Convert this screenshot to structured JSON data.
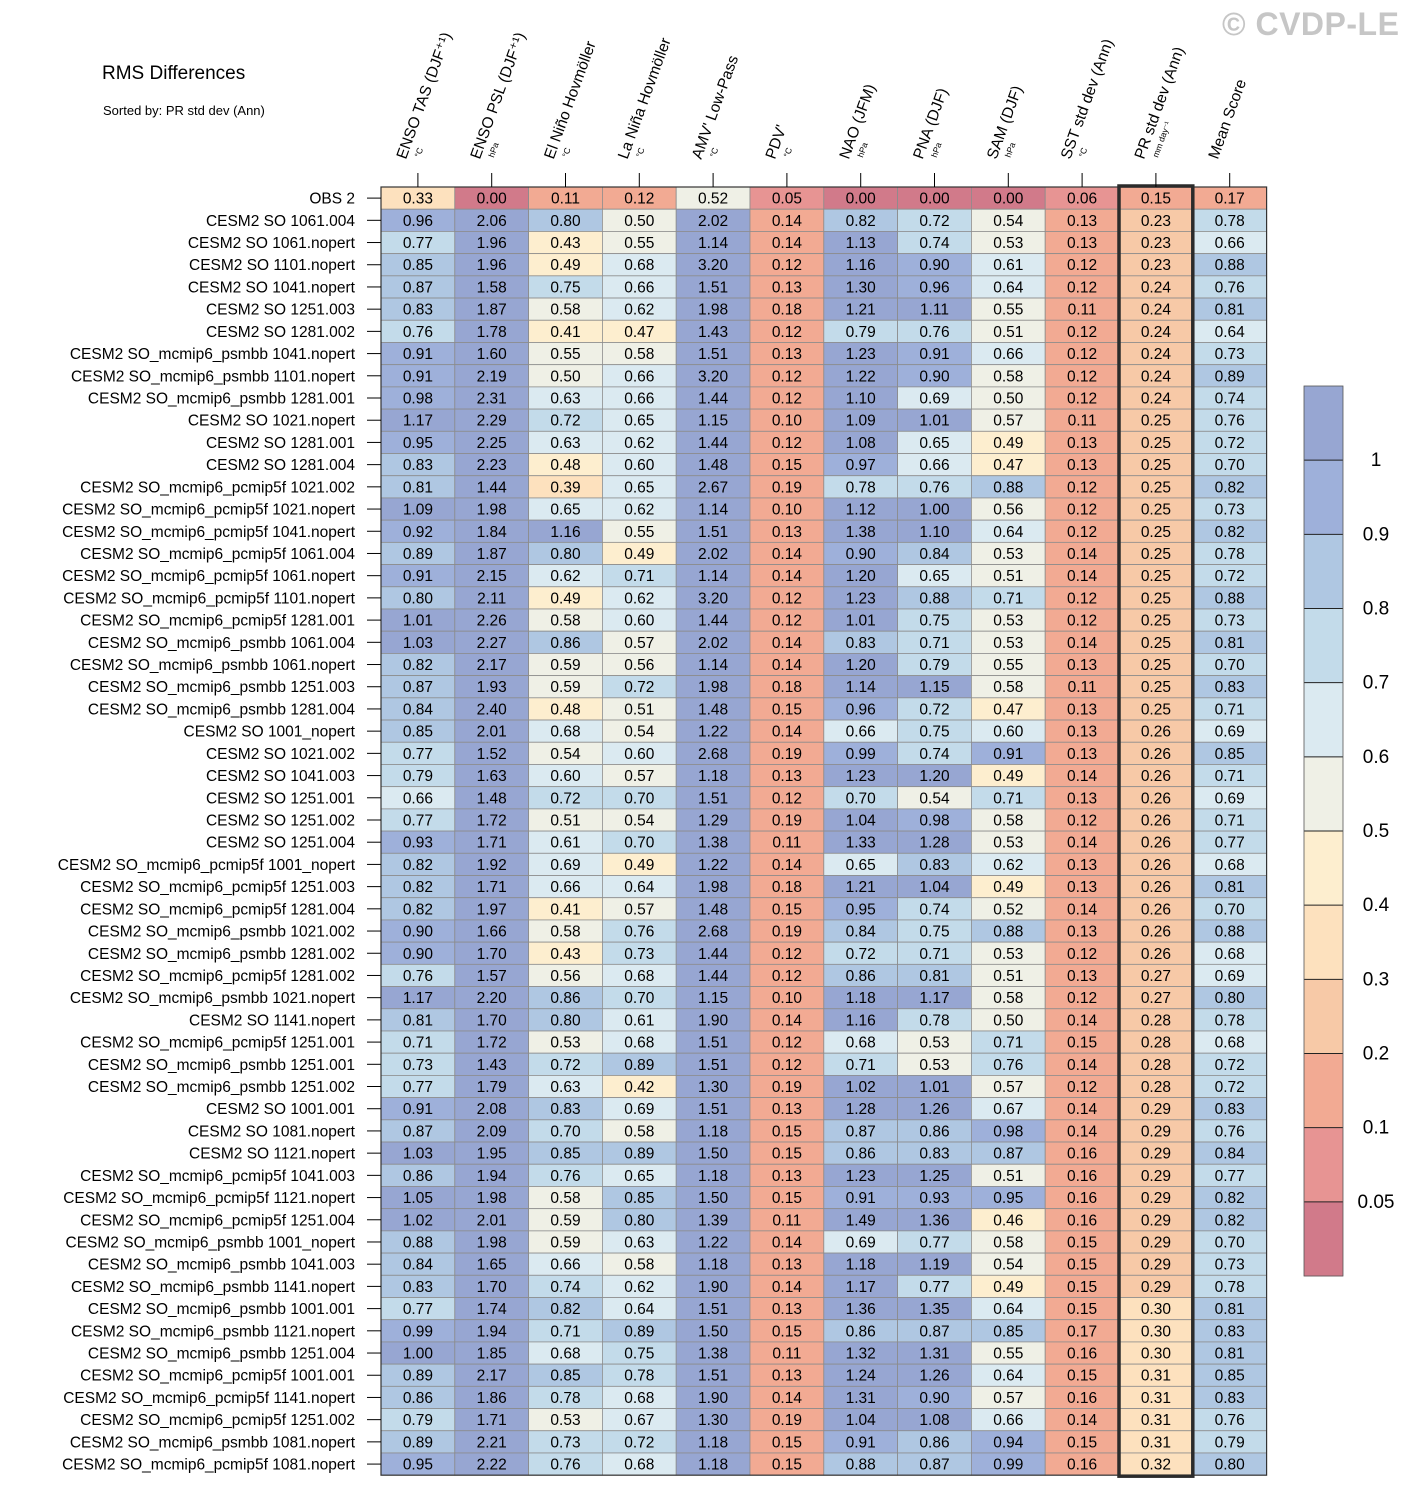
{
  "title": "RMS Differences",
  "subtitle": "Sorted by: PR std dev (Ann)",
  "watermark": "© CVDP-LE",
  "chart_data": {
    "type": "heatmap",
    "columns": [
      {
        "label": "ENSO TAS (DJF⁺¹)",
        "unit": "°C"
      },
      {
        "label": "ENSO PSL (DJF⁺¹)",
        "unit": "hPa"
      },
      {
        "label": "El Niño Hovmöller",
        "unit": "°C"
      },
      {
        "label": "La Niña Hovmöller",
        "unit": "°C"
      },
      {
        "label": "AMV' Low-Pass",
        "unit": "°C"
      },
      {
        "label": "PDV'",
        "unit": "°C"
      },
      {
        "label": "NAO (JFM)",
        "unit": "hPa"
      },
      {
        "label": "PNA (DJF)",
        "unit": "hPa"
      },
      {
        "label": "SAM (DJF)",
        "unit": "hPa"
      },
      {
        "label": "SST std dev (Ann)",
        "unit": "°C"
      },
      {
        "label": "PR std dev (Ann)",
        "unit": "mm day⁻¹"
      },
      {
        "label": "Mean Score",
        "unit": ""
      }
    ],
    "highlighted_column": "PR std dev (Ann)",
    "rows": [
      {
        "name": "OBS 2",
        "values": [
          "0.33",
          "0.00",
          "0.11",
          "0.12",
          "0.52",
          "0.05",
          "0.00",
          "0.00",
          "0.00",
          "0.06",
          "0.15",
          "0.17"
        ]
      },
      {
        "name": "CESM2 SO 1061.004",
        "values": [
          "0.96",
          "2.06",
          "0.80",
          "0.50",
          "2.02",
          "0.14",
          "0.82",
          "0.72",
          "0.54",
          "0.13",
          "0.23",
          "0.78"
        ]
      },
      {
        "name": "CESM2 SO 1061.nopert",
        "values": [
          "0.77",
          "1.96",
          "0.43",
          "0.55",
          "1.14",
          "0.14",
          "1.13",
          "0.74",
          "0.53",
          "0.13",
          "0.23",
          "0.66"
        ]
      },
      {
        "name": "CESM2 SO 1101.nopert",
        "values": [
          "0.85",
          "1.96",
          "0.49",
          "0.68",
          "3.20",
          "0.12",
          "1.16",
          "0.90",
          "0.61",
          "0.12",
          "0.23",
          "0.88"
        ]
      },
      {
        "name": "CESM2 SO 1041.nopert",
        "values": [
          "0.87",
          "1.58",
          "0.75",
          "0.66",
          "1.51",
          "0.13",
          "1.30",
          "0.96",
          "0.64",
          "0.12",
          "0.24",
          "0.76"
        ]
      },
      {
        "name": "CESM2 SO 1251.003",
        "values": [
          "0.83",
          "1.87",
          "0.58",
          "0.62",
          "1.98",
          "0.18",
          "1.21",
          "1.11",
          "0.55",
          "0.11",
          "0.24",
          "0.81"
        ]
      },
      {
        "name": "CESM2 SO 1281.002",
        "values": [
          "0.76",
          "1.78",
          "0.41",
          "0.47",
          "1.43",
          "0.12",
          "0.79",
          "0.76",
          "0.51",
          "0.12",
          "0.24",
          "0.64"
        ]
      },
      {
        "name": "CESM2 SO_mcmip6_psmbb 1041.nopert",
        "values": [
          "0.91",
          "1.60",
          "0.55",
          "0.58",
          "1.51",
          "0.13",
          "1.23",
          "0.91",
          "0.66",
          "0.12",
          "0.24",
          "0.73"
        ]
      },
      {
        "name": "CESM2 SO_mcmip6_psmbb 1101.nopert",
        "values": [
          "0.91",
          "2.19",
          "0.50",
          "0.66",
          "3.20",
          "0.12",
          "1.22",
          "0.90",
          "0.58",
          "0.12",
          "0.24",
          "0.89"
        ]
      },
      {
        "name": "CESM2 SO_mcmip6_psmbb 1281.001",
        "values": [
          "0.98",
          "2.31",
          "0.63",
          "0.66",
          "1.44",
          "0.12",
          "1.10",
          "0.69",
          "0.50",
          "0.12",
          "0.24",
          "0.74"
        ]
      },
      {
        "name": "CESM2 SO 1021.nopert",
        "values": [
          "1.17",
          "2.29",
          "0.72",
          "0.65",
          "1.15",
          "0.10",
          "1.09",
          "1.01",
          "0.57",
          "0.11",
          "0.25",
          "0.76"
        ]
      },
      {
        "name": "CESM2 SO 1281.001",
        "values": [
          "0.95",
          "2.25",
          "0.63",
          "0.62",
          "1.44",
          "0.12",
          "1.08",
          "0.65",
          "0.49",
          "0.13",
          "0.25",
          "0.72"
        ]
      },
      {
        "name": "CESM2 SO 1281.004",
        "values": [
          "0.83",
          "2.23",
          "0.48",
          "0.60",
          "1.48",
          "0.15",
          "0.97",
          "0.66",
          "0.47",
          "0.13",
          "0.25",
          "0.70"
        ]
      },
      {
        "name": "CESM2 SO_mcmip6_pcmip5f 1021.002",
        "values": [
          "0.81",
          "1.44",
          "0.39",
          "0.65",
          "2.67",
          "0.19",
          "0.78",
          "0.76",
          "0.88",
          "0.12",
          "0.25",
          "0.82"
        ]
      },
      {
        "name": "CESM2 SO_mcmip6_pcmip5f 1021.nopert",
        "values": [
          "1.09",
          "1.98",
          "0.65",
          "0.62",
          "1.14",
          "0.10",
          "1.12",
          "1.00",
          "0.56",
          "0.12",
          "0.25",
          "0.73"
        ]
      },
      {
        "name": "CESM2 SO_mcmip6_pcmip5f 1041.nopert",
        "values": [
          "0.92",
          "1.84",
          "1.16",
          "0.55",
          "1.51",
          "0.13",
          "1.38",
          "1.10",
          "0.64",
          "0.12",
          "0.25",
          "0.82"
        ]
      },
      {
        "name": "CESM2 SO_mcmip6_pcmip5f 1061.004",
        "values": [
          "0.89",
          "1.87",
          "0.80",
          "0.49",
          "2.02",
          "0.14",
          "0.90",
          "0.84",
          "0.53",
          "0.14",
          "0.25",
          "0.78"
        ]
      },
      {
        "name": "CESM2 SO_mcmip6_pcmip5f 1061.nopert",
        "values": [
          "0.91",
          "2.15",
          "0.62",
          "0.71",
          "1.14",
          "0.14",
          "1.20",
          "0.65",
          "0.51",
          "0.14",
          "0.25",
          "0.72"
        ]
      },
      {
        "name": "CESM2 SO_mcmip6_pcmip5f 1101.nopert",
        "values": [
          "0.80",
          "2.11",
          "0.49",
          "0.62",
          "3.20",
          "0.12",
          "1.23",
          "0.88",
          "0.71",
          "0.12",
          "0.25",
          "0.88"
        ]
      },
      {
        "name": "CESM2 SO_mcmip6_pcmip5f 1281.001",
        "values": [
          "1.01",
          "2.26",
          "0.58",
          "0.60",
          "1.44",
          "0.12",
          "1.01",
          "0.75",
          "0.53",
          "0.12",
          "0.25",
          "0.73"
        ]
      },
      {
        "name": "CESM2 SO_mcmip6_psmbb 1061.004",
        "values": [
          "1.03",
          "2.27",
          "0.86",
          "0.57",
          "2.02",
          "0.14",
          "0.83",
          "0.71",
          "0.53",
          "0.14",
          "0.25",
          "0.81"
        ]
      },
      {
        "name": "CESM2 SO_mcmip6_psmbb 1061.nopert",
        "values": [
          "0.82",
          "2.17",
          "0.59",
          "0.56",
          "1.14",
          "0.14",
          "1.20",
          "0.79",
          "0.55",
          "0.13",
          "0.25",
          "0.70"
        ]
      },
      {
        "name": "CESM2 SO_mcmip6_psmbb 1251.003",
        "values": [
          "0.87",
          "1.93",
          "0.59",
          "0.72",
          "1.98",
          "0.18",
          "1.14",
          "1.15",
          "0.58",
          "0.11",
          "0.25",
          "0.83"
        ]
      },
      {
        "name": "CESM2 SO_mcmip6_psmbb 1281.004",
        "values": [
          "0.84",
          "2.40",
          "0.48",
          "0.51",
          "1.48",
          "0.15",
          "0.96",
          "0.72",
          "0.47",
          "0.13",
          "0.25",
          "0.71"
        ]
      },
      {
        "name": "CESM2 SO 1001_nopert",
        "values": [
          "0.85",
          "2.01",
          "0.68",
          "0.54",
          "1.22",
          "0.14",
          "0.66",
          "0.75",
          "0.60",
          "0.13",
          "0.26",
          "0.69"
        ]
      },
      {
        "name": "CESM2 SO 1021.002",
        "values": [
          "0.77",
          "1.52",
          "0.54",
          "0.60",
          "2.68",
          "0.19",
          "0.99",
          "0.74",
          "0.91",
          "0.13",
          "0.26",
          "0.85"
        ]
      },
      {
        "name": "CESM2 SO 1041.003",
        "values": [
          "0.79",
          "1.63",
          "0.60",
          "0.57",
          "1.18",
          "0.13",
          "1.23",
          "1.20",
          "0.49",
          "0.14",
          "0.26",
          "0.71"
        ]
      },
      {
        "name": "CESM2 SO 1251.001",
        "values": [
          "0.66",
          "1.48",
          "0.72",
          "0.70",
          "1.51",
          "0.12",
          "0.70",
          "0.54",
          "0.71",
          "0.13",
          "0.26",
          "0.69"
        ]
      },
      {
        "name": "CESM2 SO 1251.002",
        "values": [
          "0.77",
          "1.72",
          "0.51",
          "0.54",
          "1.29",
          "0.19",
          "1.04",
          "0.98",
          "0.58",
          "0.12",
          "0.26",
          "0.71"
        ]
      },
      {
        "name": "CESM2 SO 1251.004",
        "values": [
          "0.93",
          "1.71",
          "0.61",
          "0.70",
          "1.38",
          "0.11",
          "1.33",
          "1.28",
          "0.53",
          "0.14",
          "0.26",
          "0.77"
        ]
      },
      {
        "name": "CESM2 SO_mcmip6_pcmip5f 1001_nopert",
        "values": [
          "0.82",
          "1.92",
          "0.69",
          "0.49",
          "1.22",
          "0.14",
          "0.65",
          "0.83",
          "0.62",
          "0.13",
          "0.26",
          "0.68"
        ]
      },
      {
        "name": "CESM2 SO_mcmip6_pcmip5f 1251.003",
        "values": [
          "0.82",
          "1.71",
          "0.66",
          "0.64",
          "1.98",
          "0.18",
          "1.21",
          "1.04",
          "0.49",
          "0.13",
          "0.26",
          "0.81"
        ]
      },
      {
        "name": "CESM2 SO_mcmip6_pcmip5f 1281.004",
        "values": [
          "0.82",
          "1.97",
          "0.41",
          "0.57",
          "1.48",
          "0.15",
          "0.95",
          "0.74",
          "0.52",
          "0.14",
          "0.26",
          "0.70"
        ]
      },
      {
        "name": "CESM2 SO_mcmip6_psmbb 1021.002",
        "values": [
          "0.90",
          "1.66",
          "0.58",
          "0.76",
          "2.68",
          "0.19",
          "0.84",
          "0.75",
          "0.88",
          "0.13",
          "0.26",
          "0.88"
        ]
      },
      {
        "name": "CESM2 SO_mcmip6_psmbb 1281.002",
        "values": [
          "0.90",
          "1.70",
          "0.43",
          "0.73",
          "1.44",
          "0.12",
          "0.72",
          "0.71",
          "0.53",
          "0.12",
          "0.26",
          "0.68"
        ]
      },
      {
        "name": "CESM2 SO_mcmip6_pcmip5f 1281.002",
        "values": [
          "0.76",
          "1.57",
          "0.56",
          "0.68",
          "1.44",
          "0.12",
          "0.86",
          "0.81",
          "0.51",
          "0.13",
          "0.27",
          "0.69"
        ]
      },
      {
        "name": "CESM2 SO_mcmip6_psmbb 1021.nopert",
        "values": [
          "1.17",
          "2.20",
          "0.86",
          "0.70",
          "1.15",
          "0.10",
          "1.18",
          "1.17",
          "0.58",
          "0.12",
          "0.27",
          "0.80"
        ]
      },
      {
        "name": "CESM2 SO 1141.nopert",
        "values": [
          "0.81",
          "1.70",
          "0.80",
          "0.61",
          "1.90",
          "0.14",
          "1.16",
          "0.78",
          "0.50",
          "0.14",
          "0.28",
          "0.78"
        ]
      },
      {
        "name": "CESM2 SO_mcmip6_pcmip5f 1251.001",
        "values": [
          "0.71",
          "1.72",
          "0.53",
          "0.68",
          "1.51",
          "0.12",
          "0.68",
          "0.53",
          "0.71",
          "0.15",
          "0.28",
          "0.68"
        ]
      },
      {
        "name": "CESM2 SO_mcmip6_psmbb 1251.001",
        "values": [
          "0.73",
          "1.43",
          "0.72",
          "0.89",
          "1.51",
          "0.12",
          "0.71",
          "0.53",
          "0.76",
          "0.14",
          "0.28",
          "0.72"
        ]
      },
      {
        "name": "CESM2 SO_mcmip6_psmbb 1251.002",
        "values": [
          "0.77",
          "1.79",
          "0.63",
          "0.42",
          "1.30",
          "0.19",
          "1.02",
          "1.01",
          "0.57",
          "0.12",
          "0.28",
          "0.72"
        ]
      },
      {
        "name": "CESM2 SO 1001.001",
        "values": [
          "0.91",
          "2.08",
          "0.83",
          "0.69",
          "1.51",
          "0.13",
          "1.28",
          "1.26",
          "0.67",
          "0.14",
          "0.29",
          "0.83"
        ]
      },
      {
        "name": "CESM2 SO 1081.nopert",
        "values": [
          "0.87",
          "2.09",
          "0.70",
          "0.58",
          "1.18",
          "0.15",
          "0.87",
          "0.86",
          "0.98",
          "0.14",
          "0.29",
          "0.76"
        ]
      },
      {
        "name": "CESM2 SO 1121.nopert",
        "values": [
          "1.03",
          "1.95",
          "0.85",
          "0.89",
          "1.50",
          "0.15",
          "0.86",
          "0.83",
          "0.87",
          "0.16",
          "0.29",
          "0.84"
        ]
      },
      {
        "name": "CESM2 SO_mcmip6_pcmip5f 1041.003",
        "values": [
          "0.86",
          "1.94",
          "0.76",
          "0.65",
          "1.18",
          "0.13",
          "1.23",
          "1.25",
          "0.51",
          "0.16",
          "0.29",
          "0.77"
        ]
      },
      {
        "name": "CESM2 SO_mcmip6_pcmip5f 1121.nopert",
        "values": [
          "1.05",
          "1.98",
          "0.58",
          "0.85",
          "1.50",
          "0.15",
          "0.91",
          "0.93",
          "0.95",
          "0.16",
          "0.29",
          "0.82"
        ]
      },
      {
        "name": "CESM2 SO_mcmip6_pcmip5f 1251.004",
        "values": [
          "1.02",
          "2.01",
          "0.59",
          "0.80",
          "1.39",
          "0.11",
          "1.49",
          "1.36",
          "0.46",
          "0.16",
          "0.29",
          "0.82"
        ]
      },
      {
        "name": "CESM2 SO_mcmip6_psmbb 1001_nopert",
        "values": [
          "0.88",
          "1.98",
          "0.59",
          "0.63",
          "1.22",
          "0.14",
          "0.69",
          "0.77",
          "0.58",
          "0.15",
          "0.29",
          "0.70"
        ]
      },
      {
        "name": "CESM2 SO_mcmip6_psmbb 1041.003",
        "values": [
          "0.84",
          "1.65",
          "0.66",
          "0.58",
          "1.18",
          "0.13",
          "1.18",
          "1.19",
          "0.54",
          "0.15",
          "0.29",
          "0.73"
        ]
      },
      {
        "name": "CESM2 SO_mcmip6_psmbb 1141.nopert",
        "values": [
          "0.83",
          "1.70",
          "0.74",
          "0.62",
          "1.90",
          "0.14",
          "1.17",
          "0.77",
          "0.49",
          "0.15",
          "0.29",
          "0.78"
        ]
      },
      {
        "name": "CESM2 SO_mcmip6_psmbb 1001.001",
        "values": [
          "0.77",
          "1.74",
          "0.82",
          "0.64",
          "1.51",
          "0.13",
          "1.36",
          "1.35",
          "0.64",
          "0.15",
          "0.30",
          "0.81"
        ]
      },
      {
        "name": "CESM2 SO_mcmip6_psmbb 1121.nopert",
        "values": [
          "0.99",
          "1.94",
          "0.71",
          "0.89",
          "1.50",
          "0.15",
          "0.86",
          "0.87",
          "0.85",
          "0.17",
          "0.30",
          "0.83"
        ]
      },
      {
        "name": "CESM2 SO_mcmip6_psmbb 1251.004",
        "values": [
          "1.00",
          "1.85",
          "0.68",
          "0.75",
          "1.38",
          "0.11",
          "1.32",
          "1.31",
          "0.55",
          "0.16",
          "0.30",
          "0.81"
        ]
      },
      {
        "name": "CESM2 SO_mcmip6_pcmip5f 1001.001",
        "values": [
          "0.89",
          "2.17",
          "0.85",
          "0.78",
          "1.51",
          "0.13",
          "1.24",
          "1.26",
          "0.64",
          "0.15",
          "0.31",
          "0.85"
        ]
      },
      {
        "name": "CESM2 SO_mcmip6_pcmip5f 1141.nopert",
        "values": [
          "0.86",
          "1.86",
          "0.78",
          "0.68",
          "1.90",
          "0.14",
          "1.31",
          "0.90",
          "0.57",
          "0.16",
          "0.31",
          "0.83"
        ]
      },
      {
        "name": "CESM2 SO_mcmip6_pcmip5f 1251.002",
        "values": [
          "0.79",
          "1.71",
          "0.53",
          "0.67",
          "1.30",
          "0.19",
          "1.04",
          "1.08",
          "0.66",
          "0.14",
          "0.31",
          "0.76"
        ]
      },
      {
        "name": "CESM2 SO_mcmip6_psmbb 1081.nopert",
        "values": [
          "0.89",
          "2.21",
          "0.73",
          "0.72",
          "1.18",
          "0.15",
          "0.91",
          "0.86",
          "0.94",
          "0.15",
          "0.31",
          "0.79"
        ]
      },
      {
        "name": "CESM2 SO_mcmip6_pcmip5f 1081.nopert",
        "values": [
          "0.95",
          "2.22",
          "0.76",
          "0.68",
          "1.18",
          "0.15",
          "0.88",
          "0.87",
          "0.99",
          "0.16",
          "0.32",
          "0.80"
        ]
      }
    ],
    "colorbar": {
      "tick_labels": [
        "1",
        "0.9",
        "0.8",
        "0.7",
        "0.6",
        "0.5",
        "0.4",
        "0.3",
        "0.2",
        "0.1",
        "0.05"
      ],
      "boundaries": [
        0.05,
        0.1,
        0.2,
        0.3,
        0.4,
        0.5,
        0.6,
        0.7,
        0.8,
        0.9,
        1.0
      ],
      "colors": [
        "#d17a8a",
        "#e79493",
        "#f2aa93",
        "#f7c9a7",
        "#fde1be",
        "#fdeecf",
        "#eff0e6",
        "#dbeaf1",
        "#c3dbea",
        "#afc7e2",
        "#9eb0da",
        "#97a6d2"
      ]
    }
  }
}
